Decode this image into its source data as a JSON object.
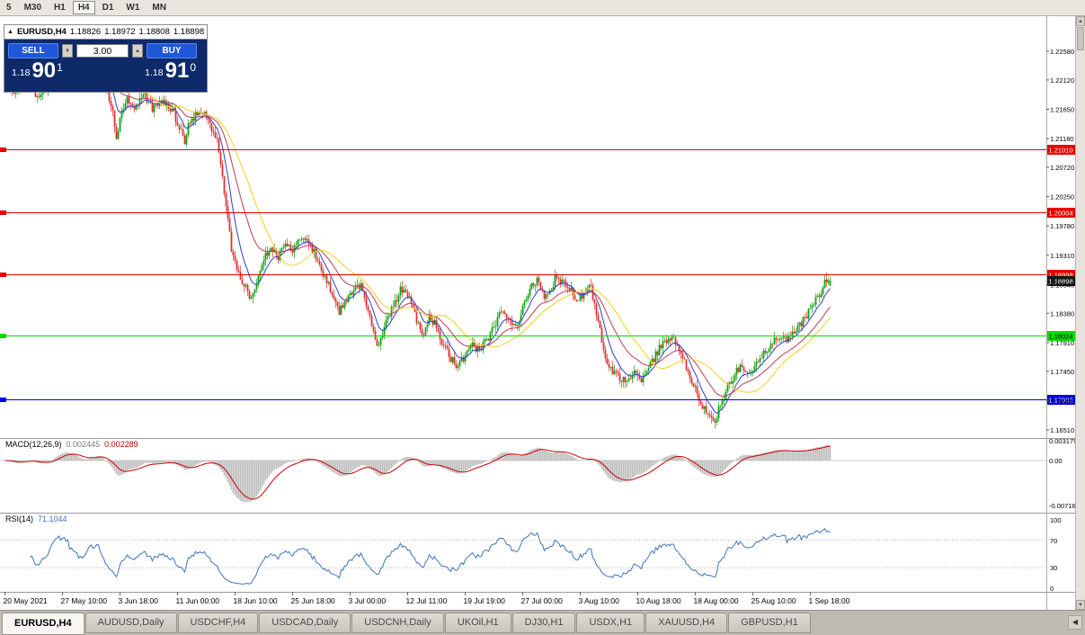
{
  "toolbar": {
    "timeframes": [
      {
        "label": "5",
        "active": false
      },
      {
        "label": "M30",
        "active": false
      },
      {
        "label": "H1",
        "active": false
      },
      {
        "label": "H4",
        "active": true
      },
      {
        "label": "D1",
        "active": false
      },
      {
        "label": "W1",
        "active": false
      },
      {
        "label": "MN",
        "active": false
      }
    ]
  },
  "chart_header": {
    "collapse_icon": "▲",
    "symbol": "EURUSD,H4",
    "open": "1.18826",
    "high": "1.18972",
    "low": "1.18808",
    "close": "1.18898"
  },
  "one_click": {
    "sell_label": "SELL",
    "buy_label": "BUY",
    "volume": "3.00",
    "volume_down_icon": "▼",
    "volume_up_icon": "▲",
    "bid_prefix": "1.18",
    "bid_big": "90",
    "bid_sup": "1",
    "ask_prefix": "1.18",
    "ask_big": "91",
    "ask_sup": "0"
  },
  "price_axis": {
    "ticks": [
      "1.22580",
      "1.22120",
      "1.21650",
      "1.21180",
      "1.20720",
      "1.20250",
      "1.19780",
      "1.19310",
      "1.18840",
      "1.18380",
      "1.17910",
      "1.17450",
      "1.16980",
      "1.16510"
    ]
  },
  "time_axis": {
    "labels": [
      "20 May 2021",
      "27 May 10:00",
      "3 Jun 18:00",
      "11 Jun 00:00",
      "18 Jun 10:00",
      "25 Jun 18:00",
      "3 Jul 00:00",
      "12 Jul 11:00",
      "19 Jul 19:00",
      "27 Jul 00:00",
      "3 Aug 10:00",
      "10 Aug 18:00",
      "18 Aug 00:00",
      "25 Aug 10:00",
      "1 Sep 18:00"
    ]
  },
  "macd_panel": {
    "name": "MACD(12,26,9)",
    "value_main": "0.002445",
    "value_signal": "0.002289",
    "axis": [
      "0.003179",
      "0.00",
      "-0.007163"
    ]
  },
  "rsi_panel": {
    "name": "RSI(14)",
    "value": "71.1044",
    "axis": [
      "100",
      "70",
      "30",
      "0"
    ]
  },
  "tabs": [
    {
      "label": "EURUSD,H4",
      "active": true
    },
    {
      "label": "AUDUSD,Daily",
      "active": false
    },
    {
      "label": "USDCHF,H4",
      "active": false
    },
    {
      "label": "USDCAD,Daily",
      "active": false
    },
    {
      "label": "USDCNH,Daily",
      "active": false
    },
    {
      "label": "UKOil,H1",
      "active": false
    },
    {
      "label": "DJ30,H1",
      "active": false
    },
    {
      "label": "USDX,H1",
      "active": false
    },
    {
      "label": "XAUUSD,H4",
      "active": false
    },
    {
      "label": "GBPUSD,H1",
      "active": false
    }
  ],
  "tab_bar": {
    "scroll_left_icon": "◀"
  },
  "scrollbar": {
    "up_icon": "▲",
    "down_icon": "▼"
  },
  "chart_data": {
    "type": "candlestick",
    "symbol": "EURUSD",
    "timeframe": "H4",
    "bars": 460,
    "bar_spacing_px": 2,
    "visible_price_range": [
      1.163,
      1.229
    ],
    "price_anchors": [
      [
        0,
        1.2205
      ],
      [
        6,
        1.219
      ],
      [
        12,
        1.2215
      ],
      [
        18,
        1.2185
      ],
      [
        24,
        1.22
      ],
      [
        28,
        1.224
      ],
      [
        34,
        1.225
      ],
      [
        38,
        1.2228
      ],
      [
        44,
        1.2215
      ],
      [
        48,
        1.2245
      ],
      [
        52,
        1.2248
      ],
      [
        56,
        1.2205
      ],
      [
        60,
        1.216
      ],
      [
        62,
        1.2118
      ],
      [
        64,
        1.215
      ],
      [
        68,
        1.218
      ],
      [
        72,
        1.2168
      ],
      [
        78,
        1.2185
      ],
      [
        82,
        1.2165
      ],
      [
        86,
        1.218
      ],
      [
        90,
        1.2172
      ],
      [
        94,
        1.2158
      ],
      [
        98,
        1.2128
      ],
      [
        100,
        1.2112
      ],
      [
        102,
        1.2145
      ],
      [
        106,
        1.2155
      ],
      [
        110,
        1.216
      ],
      [
        114,
        1.2138
      ],
      [
        118,
        1.2118
      ],
      [
        122,
        1.203
      ],
      [
        126,
        1.1942
      ],
      [
        130,
        1.1902
      ],
      [
        134,
        1.1878
      ],
      [
        136,
        1.186
      ],
      [
        140,
        1.189
      ],
      [
        144,
        1.1925
      ],
      [
        148,
        1.1945
      ],
      [
        152,
        1.1928
      ],
      [
        156,
        1.195
      ],
      [
        160,
        1.1936
      ],
      [
        164,
        1.1962
      ],
      [
        168,
        1.1952
      ],
      [
        172,
        1.1938
      ],
      [
        176,
        1.191
      ],
      [
        180,
        1.1882
      ],
      [
        184,
        1.1852
      ],
      [
        186,
        1.184
      ],
      [
        190,
        1.1862
      ],
      [
        194,
        1.1875
      ],
      [
        198,
        1.1885
      ],
      [
        202,
        1.1838
      ],
      [
        206,
        1.1798
      ],
      [
        208,
        1.1786
      ],
      [
        212,
        1.1824
      ],
      [
        216,
        1.185
      ],
      [
        220,
        1.1876
      ],
      [
        224,
        1.1866
      ],
      [
        228,
        1.1836
      ],
      [
        232,
        1.1802
      ],
      [
        236,
        1.183
      ],
      [
        240,
        1.1818
      ],
      [
        244,
        1.1786
      ],
      [
        248,
        1.1766
      ],
      [
        252,
        1.1754
      ],
      [
        256,
        1.177
      ],
      [
        260,
        1.1786
      ],
      [
        264,
        1.1776
      ],
      [
        268,
        1.1796
      ],
      [
        272,
        1.1814
      ],
      [
        276,
        1.184
      ],
      [
        280,
        1.1826
      ],
      [
        284,
        1.1816
      ],
      [
        288,
        1.1844
      ],
      [
        292,
        1.188
      ],
      [
        296,
        1.189
      ],
      [
        300,
        1.1866
      ],
      [
        304,
        1.1876
      ],
      [
        306,
        1.1894
      ],
      [
        310,
        1.189
      ],
      [
        314,
        1.1878
      ],
      [
        318,
        1.1856
      ],
      [
        322,
        1.187
      ],
      [
        326,
        1.188
      ],
      [
        330,
        1.1828
      ],
      [
        334,
        1.1764
      ],
      [
        338,
        1.1744
      ],
      [
        342,
        1.1736
      ],
      [
        346,
        1.1726
      ],
      [
        350,
        1.174
      ],
      [
        354,
        1.1732
      ],
      [
        358,
        1.1748
      ],
      [
        362,
        1.1772
      ],
      [
        366,
        1.1792
      ],
      [
        370,
        1.18
      ],
      [
        374,
        1.1786
      ],
      [
        378,
        1.176
      ],
      [
        382,
        1.173
      ],
      [
        386,
        1.1702
      ],
      [
        390,
        1.1678
      ],
      [
        394,
        1.1662
      ],
      [
        398,
        1.169
      ],
      [
        402,
        1.172
      ],
      [
        406,
        1.1742
      ],
      [
        410,
        1.1752
      ],
      [
        414,
        1.1746
      ],
      [
        418,
        1.1756
      ],
      [
        422,
        1.1772
      ],
      [
        426,
        1.179
      ],
      [
        430,
        1.18
      ],
      [
        434,
        1.1794
      ],
      [
        438,
        1.1806
      ],
      [
        442,
        1.1818
      ],
      [
        446,
        1.1836
      ],
      [
        450,
        1.1855
      ],
      [
        453,
        1.187
      ],
      [
        456,
        1.1886
      ],
      [
        459,
        1.18898
      ]
    ],
    "levels": [
      {
        "price": 1.2101,
        "label": "1.21010",
        "color": "#e60000",
        "text_color": "#ffffff"
      },
      {
        "price": 1.20004,
        "label": "1.20004",
        "color": "#e60000",
        "text_color": "#ffffff"
      },
      {
        "price": 1.18998,
        "label": "1.18998",
        "color": "#e60000",
        "text_color": "#ffffff"
      },
      {
        "price": 1.18024,
        "label": "1.18024",
        "color": "#00dd00",
        "text_color": "#000000"
      },
      {
        "price": 1.17002,
        "label": "1.17002",
        "color": "#0000e6",
        "text_color": "#ffffff"
      }
    ],
    "current_price": {
      "value": 1.18898,
      "label": "1.18898",
      "bg": "#161616",
      "text_color": "#ffffff"
    },
    "last_candle": {
      "open": 1.18826,
      "high": 1.18972,
      "low": 1.18808,
      "close": 1.18898
    },
    "candle_up_color": "#0ca30c",
    "candle_down_color": "#e03030",
    "moving_averages": [
      {
        "type": "ema",
        "period": 9,
        "color": "#2b3fd0"
      },
      {
        "type": "ema",
        "period": 25,
        "color": "#c03a50"
      },
      {
        "type": "sma",
        "period": 34,
        "color": "#f2d21f"
      }
    ],
    "macd": {
      "fast": 12,
      "slow": 26,
      "signal": 9,
      "main": 0.002445,
      "signal_value": 0.002289,
      "hist_color": "#bdbdbd",
      "signal_color": "#cc0000",
      "range": [
        -0.007163,
        0.003179
      ]
    },
    "rsi": {
      "period": 14,
      "value": 71.1044,
      "color": "#3d74b8",
      "levels": [
        70,
        30
      ]
    },
    "noise": {
      "seed": 1234567,
      "close_jitter": 0.0013,
      "wick_jitter": 0.001
    }
  }
}
